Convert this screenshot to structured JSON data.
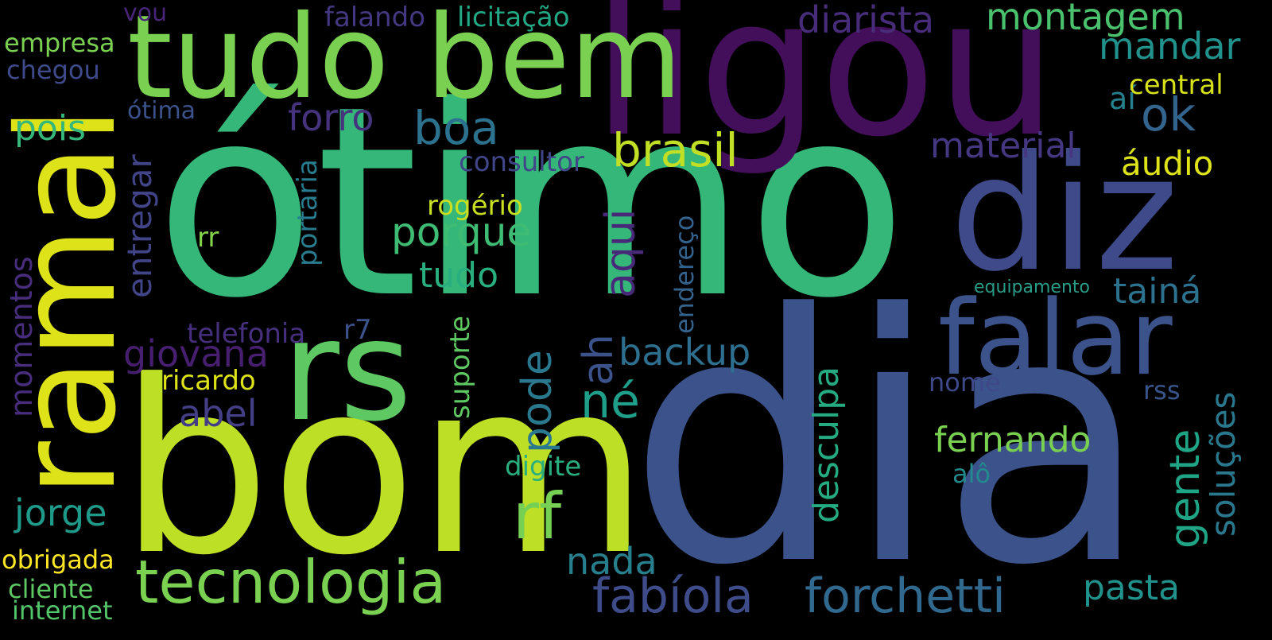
{
  "words": [
    {
      "text": "dia",
      "color": "#3b528b",
      "vertical": false
    },
    {
      "text": "ótimo",
      "color": "#35b779",
      "vertical": false
    },
    {
      "text": "bom",
      "color": "#bddf26",
      "vertical": false
    },
    {
      "text": "ligou",
      "color": "#440f5a",
      "vertical": false
    },
    {
      "text": "tudo bem",
      "color": "#7ad151",
      "vertical": false
    },
    {
      "text": "diz",
      "color": "#3e4a89",
      "vertical": false
    },
    {
      "text": "rs",
      "color": "#5ec962",
      "vertical": false
    },
    {
      "text": "ramal",
      "color": "#dde318",
      "vertical": true
    },
    {
      "text": "falar",
      "color": "#3b528b",
      "vertical": false
    },
    {
      "text": "tecnologia",
      "color": "#7ad151",
      "vertical": false
    },
    {
      "text": "rf",
      "color": "#75d054",
      "vertical": false
    },
    {
      "text": "fabíola",
      "color": "#3e4c8a",
      "vertical": false
    },
    {
      "text": "forchetti",
      "color": "#31688e",
      "vertical": false
    },
    {
      "text": "boa",
      "color": "#2c728e",
      "vertical": false
    },
    {
      "text": "brasil",
      "color": "#c0df25",
      "vertical": false
    },
    {
      "text": "porque",
      "color": "#3fbc73",
      "vertical": false
    },
    {
      "text": "aqui",
      "color": "#482878",
      "vertical": true
    },
    {
      "text": "pode",
      "color": "#2a788e",
      "vertical": true
    },
    {
      "text": "ah",
      "color": "#3b528b",
      "vertical": true
    },
    {
      "text": "né",
      "color": "#1f9e89",
      "vertical": false
    },
    {
      "text": "gente",
      "color": "#20a486",
      "vertical": true
    },
    {
      "text": "ok",
      "color": "#32648e",
      "vertical": false
    },
    {
      "text": "montagem",
      "color": "#4ac16d",
      "vertical": false
    },
    {
      "text": "diarista",
      "color": "#472c7a",
      "vertical": false
    },
    {
      "text": "mandar",
      "color": "#21918c",
      "vertical": false
    },
    {
      "text": "material",
      "color": "#453781",
      "vertical": false
    },
    {
      "text": "áudio",
      "color": "#dde318",
      "vertical": false
    },
    {
      "text": "forro",
      "color": "#46337e",
      "vertical": false
    },
    {
      "text": "tudo",
      "color": "#29af7f",
      "vertical": false
    },
    {
      "text": "backup",
      "color": "#2e6e8e",
      "vertical": false
    },
    {
      "text": "giovana",
      "color": "#481f70",
      "vertical": false
    },
    {
      "text": "abel",
      "color": "#433e85",
      "vertical": false
    },
    {
      "text": "jorge",
      "color": "#1f9a8a",
      "vertical": false
    },
    {
      "text": "nada",
      "color": "#277f8e",
      "vertical": false
    },
    {
      "text": "fernando",
      "color": "#7ad151",
      "vertical": false
    },
    {
      "text": "desculpa",
      "color": "#25ab82",
      "vertical": true
    },
    {
      "text": "soluções",
      "color": "#2a788e",
      "vertical": true
    },
    {
      "text": "tainá",
      "color": "#2c718e",
      "vertical": false
    },
    {
      "text": "pasta",
      "color": "#21918c",
      "vertical": false
    },
    {
      "text": "pois",
      "color": "#35b779",
      "vertical": false
    },
    {
      "text": "entregar",
      "color": "#414487",
      "vertical": true
    },
    {
      "text": "momentos",
      "color": "#472d7b",
      "vertical": true
    },
    {
      "text": "aí",
      "color": "#27808e",
      "vertical": false
    },
    {
      "text": "central",
      "color": "#d8e219",
      "vertical": false
    },
    {
      "text": "consultor",
      "color": "#404688",
      "vertical": false
    },
    {
      "text": "rogério",
      "color": "#c8e020",
      "vertical": false
    },
    {
      "text": "rr",
      "color": "#84d44b",
      "vertical": false
    },
    {
      "text": "portaria",
      "color": "#287c8e",
      "vertical": true
    },
    {
      "text": "endereço",
      "color": "#33628d",
      "vertical": true
    },
    {
      "text": "suporte",
      "color": "#5ec962",
      "vertical": true
    },
    {
      "text": "telefonia",
      "color": "#46307e",
      "vertical": false
    },
    {
      "text": "r7",
      "color": "#3b528b",
      "vertical": false
    },
    {
      "text": "ricardo",
      "color": "#dde318",
      "vertical": false
    },
    {
      "text": "equipamento",
      "color": "#2a9d89",
      "vertical": false
    },
    {
      "text": "nome",
      "color": "#3e4989",
      "vertical": false
    },
    {
      "text": "rss",
      "color": "#39568c",
      "vertical": false
    },
    {
      "text": "digite",
      "color": "#29af7f",
      "vertical": false
    },
    {
      "text": "alô",
      "color": "#238a8d",
      "vertical": false
    },
    {
      "text": "licitação",
      "color": "#22a884",
      "vertical": false
    },
    {
      "text": "falando",
      "color": "#453882",
      "vertical": false
    },
    {
      "text": "vou",
      "color": "#482576",
      "vertical": false
    },
    {
      "text": "empresa",
      "color": "#7ad151",
      "vertical": false
    },
    {
      "text": "chegou",
      "color": "#3e4a89",
      "vertical": false
    },
    {
      "text": "ótima",
      "color": "#3b528b",
      "vertical": false
    },
    {
      "text": "obrigada",
      "color": "#fde725",
      "vertical": false
    },
    {
      "text": "cliente",
      "color": "#5ec962",
      "vertical": false
    },
    {
      "text": "internet",
      "color": "#52c569",
      "vertical": false
    }
  ]
}
